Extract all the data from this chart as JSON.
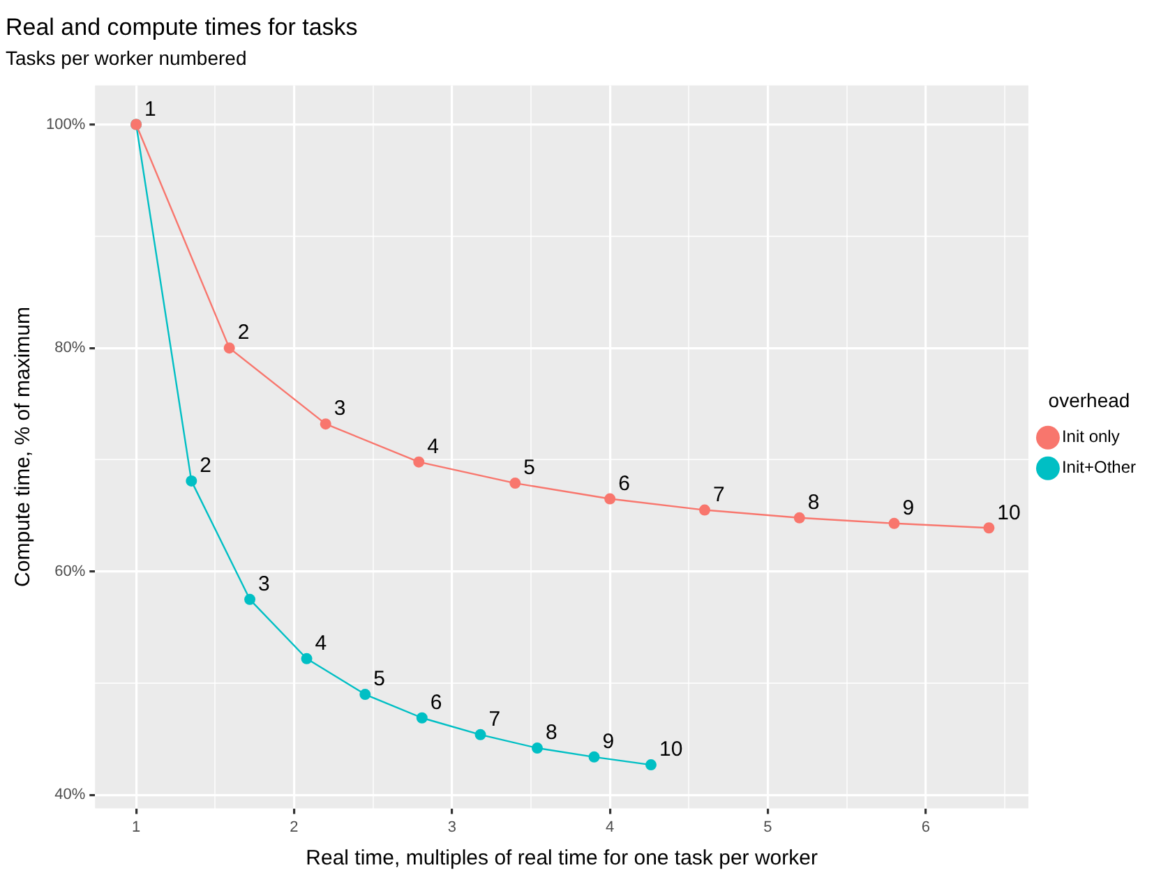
{
  "chart_data": {
    "type": "line",
    "title": "Real and compute times for tasks",
    "subtitle": "Tasks per worker numbered",
    "xlabel": "Real time, multiples of real time for one task per worker",
    "ylabel": "Compute time, % of maximum",
    "legend_title": "overhead",
    "legend": "right",
    "grid": true,
    "marker": "circle",
    "line_style": "solid",
    "xlim": [
      0.74,
      6.65
    ],
    "ylim": [
      38.8,
      103.5
    ],
    "xticks": [
      1,
      {
        "value": 1.5,
        "label": null
      },
      2,
      {
        "value": 2.5,
        "label": null
      },
      3,
      {
        "value": 3.5,
        "label": null
      },
      4,
      {
        "value": 4.5,
        "label": null
      },
      5,
      {
        "value": 5.5,
        "label": null
      },
      6,
      {
        "value": 6.5,
        "label": null
      }
    ],
    "yticks": [
      {
        "value": 40,
        "label": "40%"
      },
      {
        "value": 50,
        "label": null
      },
      {
        "value": 60,
        "label": "60%"
      },
      {
        "value": 70,
        "label": null
      },
      {
        "value": 80,
        "label": "80%"
      },
      {
        "value": 90,
        "label": null
      },
      {
        "value": 100,
        "label": "100%"
      }
    ],
    "series": [
      {
        "name": "Init only",
        "color": "#f8766d",
        "x": [
          1,
          1.59,
          2.2,
          2.79,
          3.4,
          4.0,
          4.6,
          5.2,
          5.8,
          6.4
        ],
        "values": [
          100,
          80,
          73.2,
          69.8,
          67.9,
          66.5,
          65.5,
          64.8,
          64.3,
          63.9
        ]
      },
      {
        "name": "Init+Other",
        "color": "#00bfc4",
        "x": [
          1,
          1.35,
          1.72,
          2.08,
          2.45,
          2.81,
          3.18,
          3.54,
          3.9,
          4.26
        ],
        "values": [
          100,
          68.1,
          57.5,
          52.2,
          49.0,
          46.9,
          45.4,
          44.2,
          43.4,
          42.7
        ]
      }
    ],
    "annotations": [
      {
        "text": "1",
        "x": 1,
        "y": 100
      },
      {
        "text": "2",
        "x": 1.59,
        "y": 80
      },
      {
        "text": "3",
        "x": 2.2,
        "y": 73.2
      },
      {
        "text": "4",
        "x": 2.79,
        "y": 69.8
      },
      {
        "text": "5",
        "x": 3.4,
        "y": 67.9
      },
      {
        "text": "6",
        "x": 4.0,
        "y": 66.5
      },
      {
        "text": "7",
        "x": 4.6,
        "y": 65.5
      },
      {
        "text": "8",
        "x": 5.2,
        "y": 64.8
      },
      {
        "text": "9",
        "x": 5.8,
        "y": 64.3
      },
      {
        "text": "10",
        "x": 6.4,
        "y": 63.9
      },
      {
        "text": "2",
        "x": 1.35,
        "y": 68.1
      },
      {
        "text": "3",
        "x": 1.72,
        "y": 57.5
      },
      {
        "text": "4",
        "x": 2.08,
        "y": 52.2
      },
      {
        "text": "5",
        "x": 2.45,
        "y": 49.0
      },
      {
        "text": "6",
        "x": 2.81,
        "y": 46.9
      },
      {
        "text": "7",
        "x": 3.18,
        "y": 45.4
      },
      {
        "text": "8",
        "x": 3.54,
        "y": 44.2
      },
      {
        "text": "9",
        "x": 3.9,
        "y": 43.4
      },
      {
        "text": "10",
        "x": 4.26,
        "y": 42.7
      }
    ]
  }
}
